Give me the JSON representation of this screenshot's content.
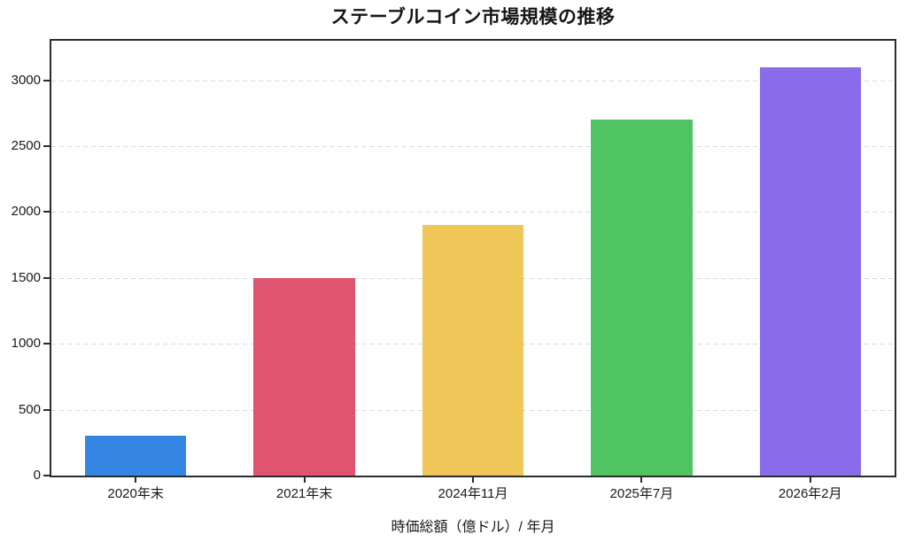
{
  "chart_data": {
    "type": "bar",
    "title": "ステーブルコイン市場規模の推移",
    "xlabel": "時価総額（億ドル）/ 年月",
    "ylabel": "",
    "categories": [
      "2020年末",
      "2021年末",
      "2024年11月",
      "2025年7月",
      "2026年2月"
    ],
    "values": [
      300,
      1500,
      1900,
      2700,
      3100
    ],
    "bar_colors": [
      "#3585e2",
      "#e0546f",
      "#efc658",
      "#50c463",
      "#8a6cea"
    ],
    "ylim": [
      0,
      3300
    ],
    "yticks": [
      0,
      500,
      1000,
      1500,
      2000,
      2500,
      3000
    ],
    "grid": "horizontal-dashed",
    "legend": "none",
    "bar_width_fraction": 0.6
  },
  "style": {
    "background": "#ffffff",
    "spine_color": "#2b2b2b",
    "grid_color": "#d9d9d9",
    "text_color": "#1a1a1a"
  }
}
